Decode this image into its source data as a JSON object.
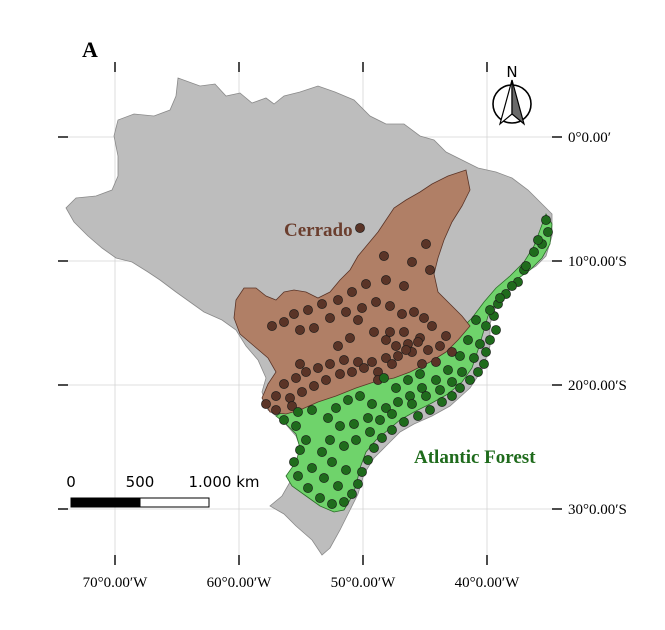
{
  "panel_label": "A",
  "colors": {
    "country_fill": "#bdbdbd",
    "cerrado_fill": "#b07f66",
    "atlantic_fill": "#6fd36b",
    "cerrado_point": "#5a3427",
    "atlantic_point": "#1f6b1c",
    "atlantic_label": "#1f6b1c",
    "cerrado_label": "#6b3e2e"
  },
  "regions": {
    "cerrado_label": "Cerrado",
    "atlantic_label": "Atlantic Forest"
  },
  "north_arrow": {
    "label": "N"
  },
  "scale_bar": {
    "labels": [
      "0",
      "500",
      "1.000 km"
    ],
    "values_km": [
      0,
      500,
      1000
    ]
  },
  "axes": {
    "x_ticks": [
      {
        "value": -70,
        "label": "70°0.00′W"
      },
      {
        "value": -60,
        "label": "60°0.00′W"
      },
      {
        "value": -50,
        "label": "50°0.00′W"
      },
      {
        "value": -40,
        "label": "40°0.00′W"
      }
    ],
    "y_ticks": [
      {
        "value": 0,
        "label": "0°0.00′"
      },
      {
        "value": -10,
        "label": "10°0.00′S"
      },
      {
        "value": -20,
        "label": "20°0.00′S"
      },
      {
        "value": -30,
        "label": "30°0.00′S"
      }
    ]
  }
}
